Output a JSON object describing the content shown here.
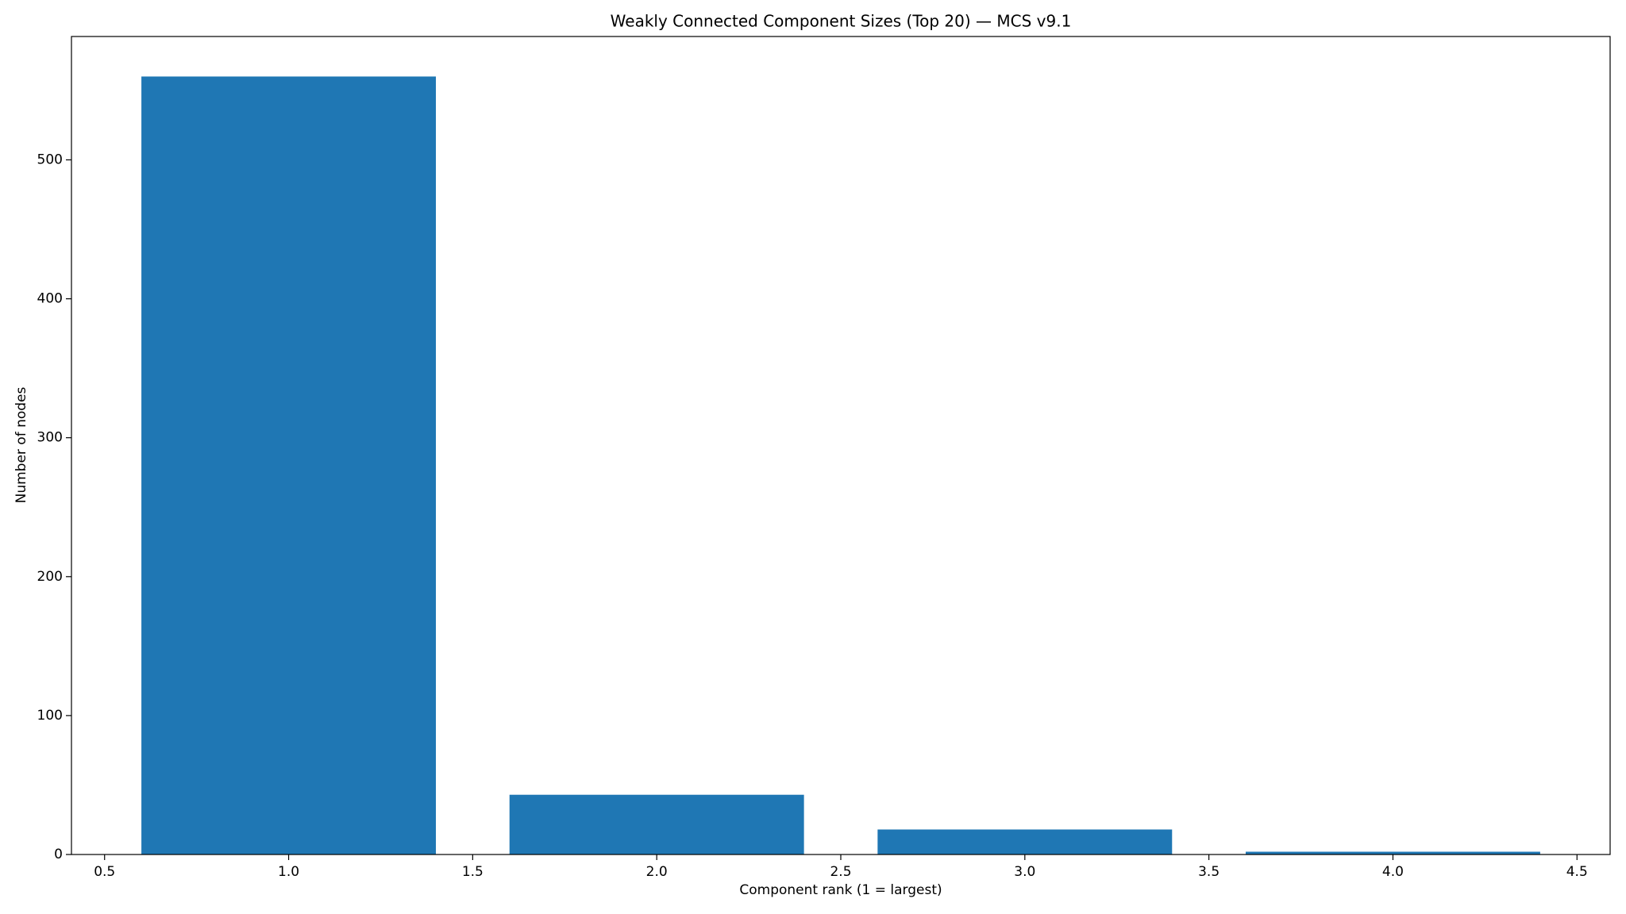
{
  "chart_data": {
    "type": "bar",
    "title": "Weakly Connected Component Sizes (Top 20) — MCS v9.1",
    "x_label": "Component rank (1 = largest)",
    "y_label": "Number of nodes",
    "x": [
      1,
      2,
      3,
      4
    ],
    "values": [
      560,
      43,
      18,
      2
    ],
    "color": "#1f77b4",
    "xlim": [
      0.41,
      4.59
    ],
    "ylim": [
      0,
      588.8
    ],
    "xticks": [
      0.5,
      {
        "value": 1,
        "label": "1.0"
      },
      1.5,
      {
        "value": 2,
        "label": "2.0"
      },
      2.5,
      {
        "value": 3,
        "label": "3.0"
      },
      3.5,
      {
        "value": 4,
        "label": "4.0"
      },
      4.5
    ],
    "yticks": [
      0,
      100,
      200,
      300,
      400,
      500
    ],
    "grid": false
  }
}
